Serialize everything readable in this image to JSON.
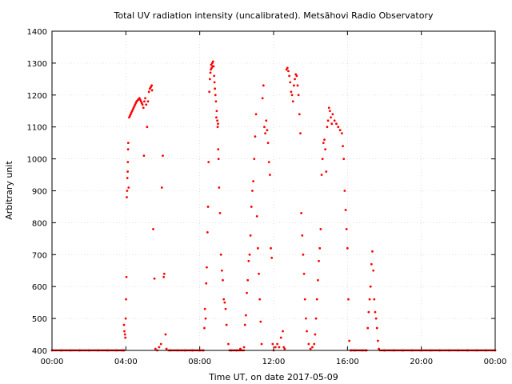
{
  "chart_data": {
    "type": "scatter",
    "title": "Total UV radiation intensity (uncalibrated). Metsähovi Radio Observatory",
    "xlabel": "Time UT, on date 2017-05-09",
    "ylabel": "Arbitrary unit",
    "xlim": [
      0,
      24
    ],
    "ylim": [
      400,
      1400
    ],
    "x_ticks": [
      0,
      4,
      8,
      12,
      16,
      20,
      24
    ],
    "x_tick_labels": [
      "00:00",
      "04:00",
      "08:00",
      "12:00",
      "16:00",
      "20:00",
      "00:00"
    ],
    "y_ticks": [
      400,
      500,
      600,
      700,
      800,
      900,
      1000,
      1100,
      1200,
      1300,
      1400
    ],
    "grid": true,
    "marker_color": "#ff0000",
    "series": [
      {
        "values": [
          [
            0.0,
            400
          ],
          [
            0.5,
            400
          ],
          [
            1.0,
            400
          ],
          [
            1.5,
            400
          ],
          [
            2.0,
            400
          ],
          [
            2.5,
            400
          ],
          [
            3.0,
            400
          ],
          [
            3.5,
            400
          ],
          [
            3.8,
            400
          ],
          [
            3.9,
            400
          ],
          [
            3.9,
            480
          ],
          [
            3.92,
            460
          ],
          [
            3.95,
            450
          ],
          [
            3.97,
            440
          ],
          [
            3.99,
            500
          ],
          [
            4.01,
            560
          ],
          [
            4.03,
            630
          ],
          [
            4.05,
            880
          ],
          [
            4.07,
            900
          ],
          [
            4.08,
            940
          ],
          [
            4.1,
            960
          ],
          [
            4.11,
            990
          ],
          [
            4.12,
            1030
          ],
          [
            4.13,
            1050
          ],
          [
            4.15,
            910
          ],
          [
            4.18,
            1130
          ],
          [
            4.22,
            1135
          ],
          [
            4.26,
            1140
          ],
          [
            4.3,
            1145
          ],
          [
            4.34,
            1150
          ],
          [
            4.38,
            1155
          ],
          [
            4.42,
            1160
          ],
          [
            4.46,
            1165
          ],
          [
            4.5,
            1170
          ],
          [
            4.54,
            1175
          ],
          [
            4.58,
            1180
          ],
          [
            4.62,
            1182
          ],
          [
            4.66,
            1185
          ],
          [
            4.7,
            1188
          ],
          [
            4.74,
            1190
          ],
          [
            4.78,
            1185
          ],
          [
            4.82,
            1180
          ],
          [
            4.86,
            1175
          ],
          [
            4.9,
            1170
          ],
          [
            4.95,
            1160
          ],
          [
            5.0,
            1180
          ],
          [
            5.05,
            1190
          ],
          [
            5.1,
            1170
          ],
          [
            5.15,
            1100
          ],
          [
            5.2,
            1180
          ],
          [
            5.25,
            1210
          ],
          [
            5.3,
            1220
          ],
          [
            5.35,
            1225
          ],
          [
            5.4,
            1230
          ],
          [
            5.42,
            1215
          ],
          [
            4.98,
            1010
          ],
          [
            5.48,
            780
          ],
          [
            5.55,
            625
          ],
          [
            5.6,
            405
          ],
          [
            5.7,
            400
          ],
          [
            5.8,
            410
          ],
          [
            5.9,
            420
          ],
          [
            5.95,
            910
          ],
          [
            6.0,
            1010
          ],
          [
            6.05,
            630
          ],
          [
            6.08,
            640
          ],
          [
            6.15,
            450
          ],
          [
            6.2,
            405
          ],
          [
            6.4,
            400
          ],
          [
            6.8,
            400
          ],
          [
            7.2,
            400
          ],
          [
            7.6,
            400
          ],
          [
            8.0,
            400
          ],
          [
            8.2,
            400
          ],
          [
            8.25,
            470
          ],
          [
            8.28,
            530
          ],
          [
            8.32,
            500
          ],
          [
            8.35,
            610
          ],
          [
            8.38,
            660
          ],
          [
            8.42,
            770
          ],
          [
            8.45,
            850
          ],
          [
            8.48,
            990
          ],
          [
            8.52,
            1210
          ],
          [
            8.55,
            1250
          ],
          [
            8.58,
            1270
          ],
          [
            8.6,
            1280
          ],
          [
            8.62,
            1295
          ],
          [
            8.65,
            1285
          ],
          [
            8.68,
            1300
          ],
          [
            8.7,
            1290
          ],
          [
            8.72,
            1305
          ],
          [
            8.75,
            1290
          ],
          [
            8.78,
            1260
          ],
          [
            8.8,
            1240
          ],
          [
            8.82,
            1220
          ],
          [
            8.85,
            1200
          ],
          [
            8.88,
            1180
          ],
          [
            8.9,
            1130
          ],
          [
            8.92,
            1150
          ],
          [
            8.95,
            1120
          ],
          [
            8.97,
            1100
          ],
          [
            8.99,
            1110
          ],
          [
            9.0,
            1030
          ],
          [
            9.02,
            1000
          ],
          [
            9.05,
            910
          ],
          [
            9.1,
            830
          ],
          [
            9.15,
            700
          ],
          [
            9.2,
            650
          ],
          [
            9.25,
            620
          ],
          [
            9.3,
            560
          ],
          [
            9.35,
            550
          ],
          [
            9.4,
            530
          ],
          [
            9.45,
            480
          ],
          [
            9.55,
            420
          ],
          [
            9.7,
            400
          ],
          [
            10.0,
            400
          ],
          [
            10.2,
            405
          ],
          [
            10.4,
            410
          ],
          [
            10.45,
            480
          ],
          [
            10.5,
            510
          ],
          [
            10.55,
            580
          ],
          [
            10.6,
            620
          ],
          [
            10.65,
            680
          ],
          [
            10.7,
            700
          ],
          [
            10.75,
            760
          ],
          [
            10.8,
            850
          ],
          [
            10.85,
            900
          ],
          [
            10.9,
            930
          ],
          [
            10.95,
            1000
          ],
          [
            11.0,
            1070
          ],
          [
            11.05,
            1140
          ],
          [
            11.1,
            820
          ],
          [
            11.15,
            720
          ],
          [
            11.2,
            640
          ],
          [
            11.25,
            560
          ],
          [
            11.3,
            490
          ],
          [
            11.35,
            420
          ],
          [
            11.4,
            1190
          ],
          [
            11.45,
            1230
          ],
          [
            11.5,
            1100
          ],
          [
            11.55,
            1080
          ],
          [
            11.6,
            1120
          ],
          [
            11.65,
            1090
          ],
          [
            11.7,
            1050
          ],
          [
            11.75,
            990
          ],
          [
            11.8,
            950
          ],
          [
            11.85,
            720
          ],
          [
            11.9,
            690
          ],
          [
            11.95,
            420
          ],
          [
            12.0,
            400
          ],
          [
            12.1,
            410
          ],
          [
            12.2,
            420
          ],
          [
            12.3,
            410
          ],
          [
            12.4,
            440
          ],
          [
            12.5,
            460
          ],
          [
            12.55,
            410
          ],
          [
            12.6,
            405
          ],
          [
            12.7,
            1280
          ],
          [
            12.75,
            1285
          ],
          [
            12.8,
            1275
          ],
          [
            12.85,
            1260
          ],
          [
            12.9,
            1240
          ],
          [
            12.95,
            1210
          ],
          [
            13.0,
            1200
          ],
          [
            13.05,
            1180
          ],
          [
            13.1,
            1230
          ],
          [
            13.15,
            1250
          ],
          [
            13.2,
            1265
          ],
          [
            13.25,
            1260
          ],
          [
            13.3,
            1230
          ],
          [
            13.35,
            1200
          ],
          [
            13.4,
            1140
          ],
          [
            13.45,
            1080
          ],
          [
            13.5,
            830
          ],
          [
            13.55,
            760
          ],
          [
            13.6,
            700
          ],
          [
            13.65,
            640
          ],
          [
            13.7,
            560
          ],
          [
            13.75,
            500
          ],
          [
            13.8,
            460
          ],
          [
            13.9,
            420
          ],
          [
            14.0,
            405
          ],
          [
            14.1,
            410
          ],
          [
            14.2,
            420
          ],
          [
            14.25,
            450
          ],
          [
            14.3,
            500
          ],
          [
            14.35,
            560
          ],
          [
            14.4,
            620
          ],
          [
            14.45,
            680
          ],
          [
            14.5,
            720
          ],
          [
            14.55,
            780
          ],
          [
            14.6,
            950
          ],
          [
            14.65,
            1000
          ],
          [
            14.7,
            1050
          ],
          [
            14.75,
            1060
          ],
          [
            14.8,
            1030
          ],
          [
            14.85,
            960
          ],
          [
            14.9,
            1100
          ],
          [
            14.95,
            1120
          ],
          [
            15.0,
            1160
          ],
          [
            15.05,
            1150
          ],
          [
            15.1,
            1130
          ],
          [
            15.15,
            1110
          ],
          [
            15.2,
            1140
          ],
          [
            15.3,
            1120
          ],
          [
            15.4,
            1110
          ],
          [
            15.5,
            1100
          ],
          [
            15.6,
            1090
          ],
          [
            15.7,
            1080
          ],
          [
            15.75,
            1040
          ],
          [
            15.8,
            1000
          ],
          [
            15.85,
            900
          ],
          [
            15.9,
            840
          ],
          [
            15.95,
            780
          ],
          [
            16.0,
            720
          ],
          [
            16.05,
            560
          ],
          [
            16.1,
            430
          ],
          [
            16.2,
            400
          ],
          [
            16.4,
            400
          ],
          [
            16.8,
            400
          ],
          [
            17.0,
            400
          ],
          [
            17.1,
            470
          ],
          [
            17.15,
            520
          ],
          [
            17.2,
            560
          ],
          [
            17.25,
            600
          ],
          [
            17.3,
            670
          ],
          [
            17.35,
            710
          ],
          [
            17.4,
            650
          ],
          [
            17.45,
            560
          ],
          [
            17.5,
            520
          ],
          [
            17.55,
            500
          ],
          [
            17.6,
            470
          ],
          [
            17.65,
            430
          ],
          [
            17.7,
            405
          ],
          [
            18.0,
            400
          ],
          [
            18.5,
            400
          ],
          [
            19.0,
            400
          ],
          [
            19.5,
            400
          ],
          [
            20.0,
            400
          ],
          [
            20.5,
            400
          ],
          [
            21.0,
            400
          ],
          [
            21.5,
            400
          ],
          [
            22.0,
            400
          ],
          [
            22.5,
            400
          ],
          [
            23.0,
            400
          ],
          [
            23.5,
            400
          ],
          [
            24.0,
            400
          ]
        ]
      }
    ]
  }
}
